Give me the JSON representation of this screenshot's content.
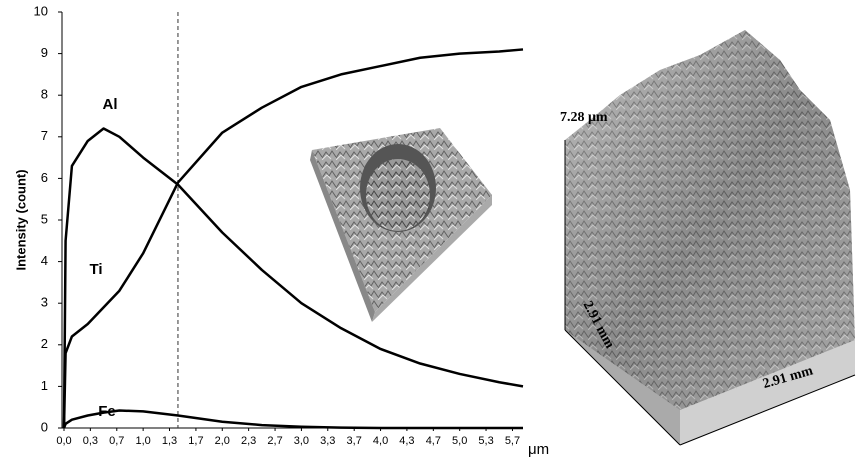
{
  "chart_data": {
    "type": "line",
    "y_label": "Intensity (count)",
    "x_unit": "μm",
    "x": [
      0,
      0.02,
      0.1,
      0.3,
      0.5,
      0.7,
      1.0,
      1.44,
      2.0,
      2.5,
      3.0,
      3.5,
      4.0,
      4.5,
      5.0,
      5.5,
      5.8
    ],
    "series": [
      {
        "name": "Al",
        "color": "#000000",
        "values": [
          0,
          4.5,
          6.3,
          6.9,
          7.2,
          7.0,
          6.5,
          5.85,
          4.7,
          3.8,
          3.0,
          2.4,
          1.9,
          1.55,
          1.3,
          1.1,
          1.0
        ]
      },
      {
        "name": "Ti",
        "color": "#000000",
        "values": [
          0,
          1.8,
          2.2,
          2.5,
          2.9,
          3.3,
          4.2,
          5.9,
          7.1,
          7.7,
          8.2,
          8.5,
          8.7,
          8.9,
          9.0,
          9.05,
          9.1
        ]
      },
      {
        "name": "Fe",
        "color": "#000000",
        "values": [
          0,
          0.1,
          0.2,
          0.3,
          0.37,
          0.42,
          0.4,
          0.3,
          0.15,
          0.07,
          0.03,
          0.01,
          0,
          0,
          0,
          0,
          0
        ]
      }
    ],
    "marker_x": 1.44,
    "xlim": [
      0,
      5.8
    ],
    "ylim": [
      0,
      10
    ],
    "yticks": [
      0,
      1,
      2,
      3,
      4,
      5,
      6,
      7,
      8,
      9,
      10
    ],
    "xticks": [
      {
        "value": 0,
        "label": "0,0"
      },
      {
        "value": 0.333,
        "label": "0,3"
      },
      {
        "value": 0.667,
        "label": "0,7"
      },
      {
        "value": 1.0,
        "label": "1,0"
      },
      {
        "value": 1.333,
        "label": "1,3"
      },
      {
        "value": 1.667,
        "label": "1,7"
      },
      {
        "value": 2.0,
        "label": "2,0"
      },
      {
        "value": 2.333,
        "label": "2,3"
      },
      {
        "value": 2.667,
        "label": "2,7"
      },
      {
        "value": 3.0,
        "label": "3,0"
      },
      {
        "value": 3.333,
        "label": "3,3"
      },
      {
        "value": 3.667,
        "label": "3,7"
      },
      {
        "value": 4.0,
        "label": "4,0"
      },
      {
        "value": 4.333,
        "label": "4,3"
      },
      {
        "value": 4.667,
        "label": "4,7"
      },
      {
        "value": 5.0,
        "label": "5,0"
      },
      {
        "value": 5.333,
        "label": "5,3"
      },
      {
        "value": 5.667,
        "label": "5,7"
      }
    ]
  },
  "surface_image": {
    "height_label": "7.28 μm",
    "depth_label": "2.91 mm",
    "width_label": "2.91 mm"
  }
}
